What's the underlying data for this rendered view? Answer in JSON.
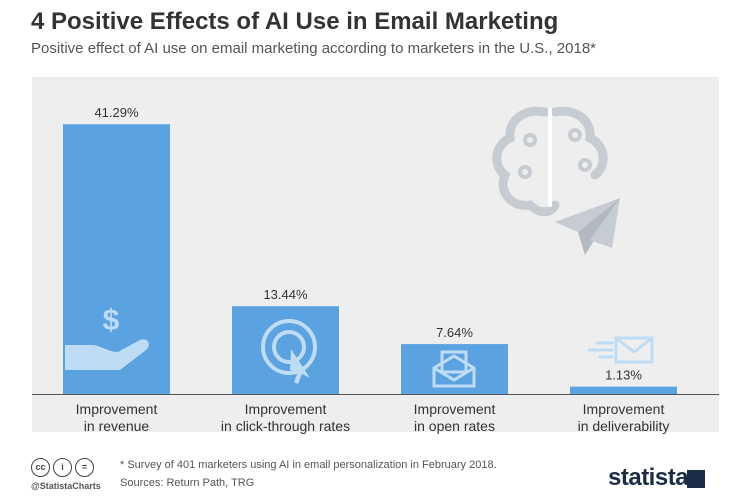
{
  "header": {
    "title": "4 Positive Effects of AI Use in Email Marketing",
    "subtitle": "Positive effect of AI use on email marketing according to marketers in the U.S., 2018*"
  },
  "chart_data": {
    "type": "bar",
    "categories": [
      [
        "Improvement",
        "in revenue"
      ],
      [
        "Improvement",
        "in click-through rates"
      ],
      [
        "Improvement",
        "in open rates"
      ],
      [
        "Improvement",
        "in deliverability"
      ]
    ],
    "values": [
      41.29,
      13.44,
      7.64,
      1.13
    ],
    "value_labels": [
      "41.29%",
      "13.44%",
      "7.64%",
      "1.13%"
    ],
    "ylim": [
      0,
      45
    ],
    "grid": false,
    "bar_color": "#5ba2e1",
    "icons": [
      "money-hand-icon",
      "click-cursor-icon",
      "open-envelope-icon",
      "fast-envelope-icon"
    ]
  },
  "footer": {
    "license_icons": [
      "cc-icon",
      "attribution-icon",
      "no-derivatives-icon"
    ],
    "license_glyphs": [
      "cc",
      "i",
      "="
    ],
    "handle": "@StatistaCharts",
    "note": "* Survey of 401 marketers using AI in email personalization in February 2018.",
    "source": "Sources: Return Path, TRG",
    "brand": "statista"
  },
  "colors": {
    "panel": "#eeeeee",
    "bar": "#5ba2e1",
    "text": "#333333",
    "brand": "#1b2c46"
  }
}
